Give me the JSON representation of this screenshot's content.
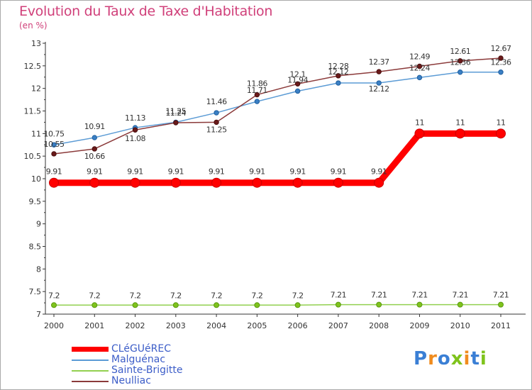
{
  "chart_data": {
    "type": "line",
    "title": "Evolution du Taux de Taxe d'Habitation",
    "subtitle": "(en %)",
    "xlabel": "",
    "ylabel": "",
    "x": [
      "2000",
      "2001",
      "2002",
      "2003",
      "2004",
      "2005",
      "2006",
      "2007",
      "2008",
      "2009",
      "2010",
      "2011"
    ],
    "ylim": [
      7,
      13
    ],
    "yticks": [
      "7",
      "7.5",
      "8",
      "8.5",
      "9",
      "9.5",
      "10",
      "10.5",
      "11",
      "11.5",
      "12",
      "12.5",
      "13"
    ],
    "grid": false,
    "legend_position": "bottom-left",
    "series": [
      {
        "name": "CLéGUéREC",
        "color": "#ff0000",
        "values": [
          9.91,
          9.91,
          9.91,
          9.91,
          9.91,
          9.91,
          9.91,
          9.91,
          9.91,
          11,
          11,
          11
        ],
        "labels": [
          "9.91",
          "9.91",
          "9.91",
          "9.91",
          "9.91",
          "9.91",
          "9.91",
          "9.91",
          "9.91",
          "11",
          "11",
          "11"
        ]
      },
      {
        "name": "Malguénac",
        "color": "#5b9bd5",
        "values": [
          10.75,
          10.91,
          11.13,
          11.25,
          11.46,
          11.71,
          11.94,
          12.12,
          12.12,
          12.24,
          12.36,
          12.36
        ],
        "labels": [
          "10.75",
          "10.91",
          "11.13",
          "11.25",
          "11.46",
          "11.71",
          "11.94",
          "12.12",
          "12.12",
          "12.24",
          "12.36",
          "12.36"
        ]
      },
      {
        "name": "Sainte-Brigitte",
        "color": "#92d050",
        "values": [
          7.2,
          7.2,
          7.2,
          7.2,
          7.2,
          7.2,
          7.2,
          7.21,
          7.21,
          7.21,
          7.21,
          7.21
        ],
        "labels": [
          "7.2",
          "7.2",
          "7.2",
          "7.2",
          "7.2",
          "7.2",
          "7.2",
          "7.21",
          "7.21",
          "7.21",
          "7.21",
          "7.21"
        ]
      },
      {
        "name": "Neulliac",
        "color": "#8b3a3a",
        "values": [
          10.55,
          10.66,
          11.08,
          11.24,
          11.25,
          11.86,
          12.1,
          12.28,
          12.37,
          12.49,
          12.61,
          12.67
        ],
        "labels": [
          "10.55",
          "10.66",
          "11.08",
          "11.24",
          "11.25",
          "11.86",
          "12.1",
          "12.28",
          "12.37",
          "12.49",
          "12.61",
          "12.67"
        ]
      }
    ]
  },
  "logo": {
    "letters": [
      "P",
      "r",
      "o",
      "x",
      "i",
      "t",
      "i"
    ],
    "colors": [
      "#3a7fd5",
      "#f08c1e",
      "#3a7fd5",
      "#7fc31c",
      "#f08c1e",
      "#3a7fd5",
      "#7fc31c"
    ]
  }
}
